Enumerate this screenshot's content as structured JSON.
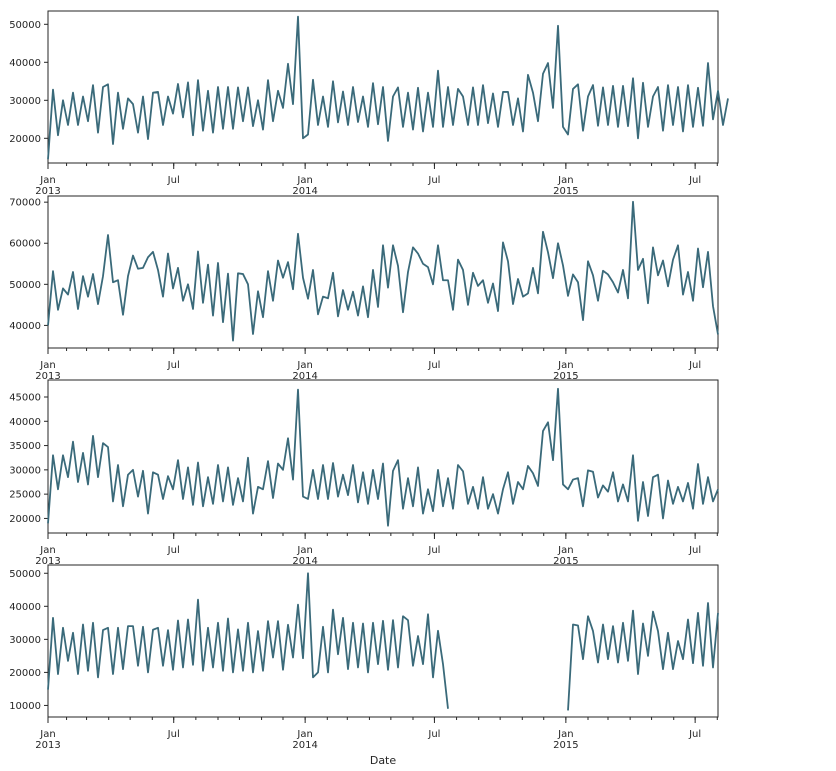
{
  "figure": {
    "xlabel": "Date",
    "line_color": "#3a6a7a",
    "background": "#ffffff",
    "frame_color": "#262626"
  },
  "chart_data": [
    {
      "type": "line",
      "x_range": [
        "2013-01-06",
        "2015-08-02"
      ],
      "x_ticks": [
        {
          "date": "2013-01-01",
          "label": "Jan",
          "sublabel": "2013"
        },
        {
          "date": "2013-07-01",
          "label": "Jul",
          "sublabel": ""
        },
        {
          "date": "2014-01-01",
          "label": "Jan",
          "sublabel": "2014"
        },
        {
          "date": "2014-07-01",
          "label": "Jul",
          "sublabel": ""
        },
        {
          "date": "2015-01-01",
          "label": "Jan",
          "sublabel": "2015"
        },
        {
          "date": "2015-07-01",
          "label": "Jul",
          "sublabel": ""
        }
      ],
      "y_ticks": [
        20000,
        30000,
        40000,
        50000
      ],
      "ylim": [
        13500,
        53500
      ],
      "grid": false,
      "series": [
        {
          "start": "2013-01-06",
          "freq": "W",
          "values": [
            14500,
            32800,
            20800,
            30000,
            23500,
            32000,
            23500,
            31000,
            24500,
            34000,
            21500,
            33500,
            34200,
            18500,
            32000,
            22500,
            30500,
            29000,
            21500,
            31000,
            19800,
            32000,
            32200,
            23500,
            31000,
            26500,
            34300,
            25500,
            34700,
            20800,
            35300,
            22000,
            32500,
            21500,
            33500,
            22500,
            33500,
            22500,
            33400,
            24500,
            33400,
            23200,
            30000,
            22300,
            35300,
            24500,
            32500,
            28000,
            39600,
            29000,
            52000,
            20000,
            21000,
            35400,
            23500,
            31000,
            23000,
            35000,
            24200,
            32300,
            23500,
            33500,
            24300,
            31000,
            23000,
            34500,
            23700,
            33500,
            19300,
            31000,
            33400,
            23000,
            32000,
            22300,
            33300,
            21800,
            32000,
            23000,
            37800,
            23000,
            33500,
            23500,
            33000,
            31000,
            23500,
            33400,
            23500,
            34000,
            24000,
            31800,
            23000,
            32200,
            32200,
            23500,
            30500,
            21800,
            36700,
            32000,
            24500,
            37000,
            39800,
            28000,
            49600,
            23000,
            21000,
            33000,
            34200,
            22000,
            31000,
            34000,
            23300,
            33400,
            23500,
            33800,
            23000,
            33800,
            23200,
            35800,
            20000,
            34600,
            23000,
            31000,
            33500,
            22000,
            34000,
            23500,
            33500,
            21800,
            34000,
            23000,
            33300,
            23300,
            39800,
            25000,
            32500,
            23500,
            30500
          ]
        }
      ]
    },
    {
      "type": "line",
      "x_range": [
        "2013-01-06",
        "2015-08-02"
      ],
      "x_ticks": [
        {
          "date": "2013-01-01",
          "label": "Jan",
          "sublabel": "2013"
        },
        {
          "date": "2013-07-01",
          "label": "Jul",
          "sublabel": ""
        },
        {
          "date": "2014-01-01",
          "label": "Jan",
          "sublabel": "2014"
        },
        {
          "date": "2014-07-01",
          "label": "Jul",
          "sublabel": ""
        },
        {
          "date": "2015-01-01",
          "label": "Jan",
          "sublabel": "2015"
        },
        {
          "date": "2015-07-01",
          "label": "Jul",
          "sublabel": ""
        }
      ],
      "y_ticks": [
        40000,
        50000,
        60000,
        70000
      ],
      "ylim": [
        34500,
        71500
      ],
      "grid": false,
      "series": [
        {
          "start": "2013-01-06",
          "freq": "W",
          "values": [
            40000,
            53200,
            43800,
            49000,
            47500,
            53000,
            44000,
            52000,
            47000,
            52500,
            45200,
            52000,
            62000,
            50500,
            51000,
            42600,
            52000,
            57000,
            53800,
            54000,
            56600,
            57900,
            53500,
            47000,
            57500,
            49000,
            54000,
            46000,
            50000,
            44000,
            58000,
            45500,
            54800,
            42400,
            55200,
            40800,
            52600,
            36300,
            52700,
            52500,
            50000,
            37900,
            48300,
            42000,
            53200,
            46000,
            55800,
            51600,
            55400,
            48800,
            62300,
            51600,
            46500,
            53500,
            42700,
            47000,
            46600,
            52800,
            42200,
            48600,
            43800,
            48200,
            42400,
            49500,
            42000,
            53500,
            44500,
            59500,
            49200,
            59500,
            54500,
            43200,
            53000,
            59000,
            57500,
            55000,
            54200,
            50000,
            59500,
            51000,
            51000,
            43800,
            56000,
            53500,
            45000,
            52800,
            49600,
            51000,
            45500,
            50200,
            43500,
            60200,
            55600,
            45200,
            51300,
            47000,
            47800,
            54000,
            47800,
            62800,
            57800,
            51500,
            60000,
            54600,
            47200,
            52400,
            50500,
            41300,
            55600,
            52200,
            46000,
            53300,
            52400,
            50500,
            48000,
            53500,
            46600,
            70100,
            53500,
            56200,
            45400,
            59000,
            52200,
            55800,
            49500,
            56000,
            59500,
            47500,
            53000,
            46000,
            58700,
            49300,
            57900,
            44700,
            37800
          ]
        }
      ]
    },
    {
      "type": "line",
      "x_range": [
        "2013-01-06",
        "2015-08-02"
      ],
      "x_ticks": [
        {
          "date": "2013-01-01",
          "label": "Jan",
          "sublabel": "2013"
        },
        {
          "date": "2013-07-01",
          "label": "Jul",
          "sublabel": ""
        },
        {
          "date": "2014-01-01",
          "label": "Jan",
          "sublabel": "2014"
        },
        {
          "date": "2014-07-01",
          "label": "Jul",
          "sublabel": ""
        },
        {
          "date": "2015-01-01",
          "label": "Jan",
          "sublabel": "2015"
        },
        {
          "date": "2015-07-01",
          "label": "Jul",
          "sublabel": ""
        }
      ],
      "y_ticks": [
        20000,
        25000,
        30000,
        35000,
        40000,
        45000
      ],
      "ylim": [
        17000,
        48500
      ],
      "grid": false,
      "series": [
        {
          "start": "2013-01-06",
          "freq": "W",
          "values": [
            19000,
            33000,
            26000,
            33000,
            28500,
            35800,
            27500,
            33500,
            27000,
            37000,
            28500,
            35500,
            34700,
            23500,
            31000,
            22500,
            29000,
            30000,
            24500,
            29800,
            21000,
            29500,
            29000,
            24000,
            28700,
            26000,
            32000,
            24000,
            30500,
            22800,
            31500,
            22500,
            28500,
            23000,
            31000,
            23500,
            30500,
            22800,
            28300,
            23500,
            32500,
            21000,
            26500,
            26000,
            31800,
            24200,
            31300,
            30000,
            36500,
            28000,
            46500,
            24500,
            24000,
            30000,
            24000,
            31000,
            24000,
            31400,
            24500,
            29000,
            24800,
            31000,
            23300,
            29500,
            23000,
            30000,
            24000,
            31300,
            18500,
            29800,
            32000,
            22000,
            28300,
            22500,
            30500,
            21000,
            26000,
            21500,
            30000,
            22500,
            28300,
            22000,
            31000,
            29700,
            23000,
            26500,
            22000,
            28500,
            22000,
            25000,
            21000,
            26000,
            29500,
            23000,
            27500,
            26000,
            30800,
            29300,
            26700,
            38000,
            39800,
            32000,
            46700,
            27000,
            26000,
            28000,
            28300,
            22500,
            29900,
            29600,
            24300,
            26800,
            25500,
            29500,
            23500,
            27000,
            23500,
            33000,
            19500,
            27500,
            20500,
            28500,
            29000,
            20000,
            27800,
            23000,
            26500,
            23500,
            27300,
            22000,
            31200,
            23000,
            28500,
            23500,
            26000
          ]
        }
      ]
    },
    {
      "type": "line",
      "x_range": [
        "2013-01-06",
        "2015-08-02"
      ],
      "x_ticks": [
        {
          "date": "2013-01-01",
          "label": "Jan",
          "sublabel": "2013"
        },
        {
          "date": "2013-07-01",
          "label": "Jul",
          "sublabel": ""
        },
        {
          "date": "2014-01-01",
          "label": "Jan",
          "sublabel": "2014"
        },
        {
          "date": "2014-07-01",
          "label": "Jul",
          "sublabel": ""
        },
        {
          "date": "2015-01-01",
          "label": "Jan",
          "sublabel": "2015"
        },
        {
          "date": "2015-07-01",
          "label": "Jul",
          "sublabel": ""
        }
      ],
      "y_ticks": [
        10000,
        20000,
        30000,
        40000,
        50000
      ],
      "ylim": [
        6500,
        52500
      ],
      "grid": false,
      "series": [
        {
          "start": "2013-01-06",
          "freq": "W",
          "values": [
            14800,
            36500,
            19500,
            33500,
            23500,
            32000,
            19500,
            34500,
            20500,
            35000,
            18500,
            32800,
            33500,
            19500,
            33500,
            21000,
            34000,
            34000,
            22000,
            33800,
            20000,
            32900,
            33500,
            22000,
            32800,
            20800,
            35700,
            21500,
            36000,
            22300,
            42000,
            20500,
            33500,
            21500,
            35000,
            20500,
            36300,
            20000,
            33000,
            20500,
            35000,
            20000,
            32500,
            20500,
            35500,
            24500,
            35500,
            20800,
            34400,
            24500,
            40500,
            24300,
            50000,
            18500,
            20000,
            33800,
            20000,
            39000,
            25500,
            36500,
            21000,
            35000,
            21500,
            34800,
            20000,
            35000,
            22500,
            35600,
            20800,
            35800,
            21500,
            37000,
            35800,
            22000,
            31000,
            22500,
            37600,
            18500,
            32600,
            22500,
            9000,
            null,
            null,
            null,
            null,
            null,
            null,
            null,
            null,
            null,
            null,
            null,
            null,
            null,
            null,
            null,
            null,
            null,
            null,
            null,
            null,
            null,
            null,
            null,
            8500,
            34500,
            34200,
            24000,
            37000,
            32500,
            23000,
            34500,
            24000,
            34000,
            23000,
            35000,
            23500,
            38700,
            19500,
            34800,
            25000,
            38400,
            32500,
            21000,
            32000,
            21000,
            29500,
            24000,
            36000,
            22800,
            38000,
            22000,
            41000,
            21500,
            38000
          ]
        }
      ]
    }
  ]
}
